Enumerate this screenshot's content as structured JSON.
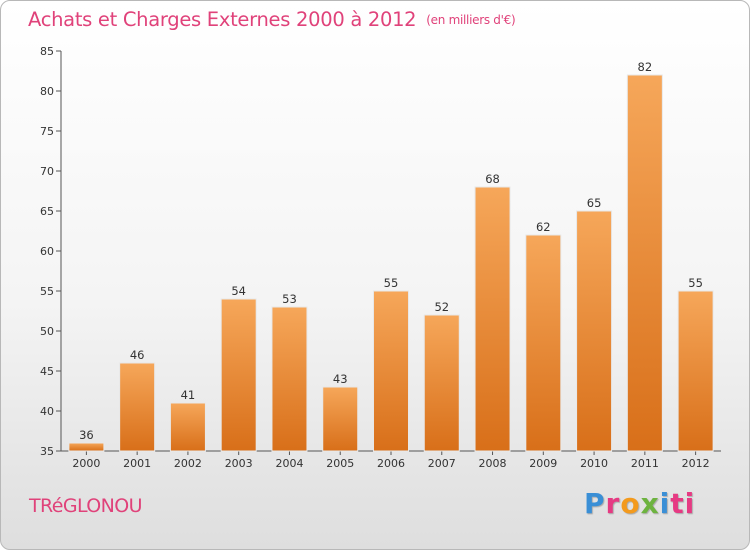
{
  "header": {
    "title": "Achats et Charges Externes 2000 à 2012",
    "unit": "(en milliers d'€)"
  },
  "footer": {
    "commune": "TRéGLONOU",
    "logo_letters": [
      "P",
      "r",
      "o",
      "x",
      "i",
      "ti"
    ]
  },
  "colors": {
    "title": "#e0427a",
    "bar_top": "#f6a75a",
    "bar_bottom": "#d86f19"
  },
  "chart_data": {
    "type": "bar",
    "title": "Achats et Charges Externes 2000 à 2012",
    "subtitle": "(en milliers d'€)",
    "categories": [
      "2000",
      "2001",
      "2002",
      "2003",
      "2004",
      "2005",
      "2006",
      "2007",
      "2008",
      "2009",
      "2010",
      "2011",
      "2012"
    ],
    "values": [
      36,
      46,
      41,
      54,
      53,
      43,
      55,
      52,
      68,
      62,
      65,
      82,
      55
    ],
    "ylim": [
      35,
      85
    ],
    "yticks": [
      35,
      40,
      45,
      50,
      55,
      60,
      65,
      70,
      75,
      80,
      85
    ],
    "grid": false,
    "legend": "none",
    "xlabel": "",
    "ylabel": ""
  }
}
